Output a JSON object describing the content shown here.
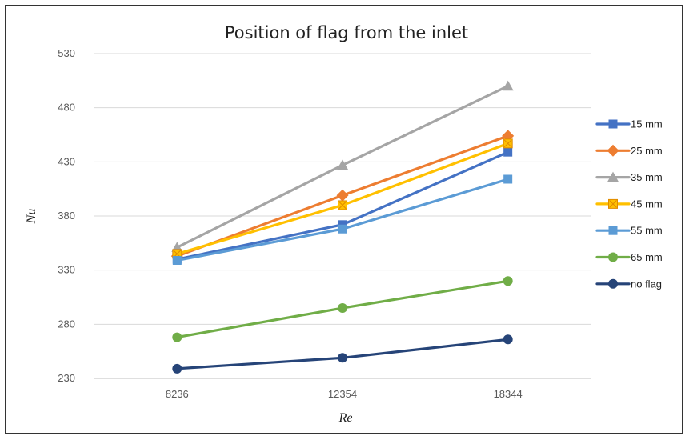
{
  "chart_data": {
    "type": "line",
    "title": "Position of flag from the inlet",
    "xlabel": "Re",
    "ylabel": "Nu",
    "categories": [
      "8236",
      "12354",
      "18344"
    ],
    "ylim": [
      230,
      530
    ],
    "yticks": [
      230,
      280,
      330,
      380,
      430,
      480,
      530
    ],
    "grid": "horizontal",
    "legend_position": "right",
    "series": [
      {
        "name": "15 mm",
        "values": [
          340,
          372,
          439
        ],
        "color": "#4472C4",
        "marker": "square"
      },
      {
        "name": "25 mm",
        "values": [
          343,
          399,
          454
        ],
        "color": "#ED7D31",
        "marker": "diamond"
      },
      {
        "name": "35 mm",
        "values": [
          351,
          427,
          500
        ],
        "color": "#A5A5A5",
        "marker": "triangle"
      },
      {
        "name": "45 mm",
        "values": [
          345,
          390,
          447
        ],
        "color": "#FFC000",
        "marker": "square-x"
      },
      {
        "name": "55 mm",
        "values": [
          339,
          368,
          414
        ],
        "color": "#5B9BD5",
        "marker": "square"
      },
      {
        "name": "65 mm",
        "values": [
          268,
          295,
          320
        ],
        "color": "#70AD47",
        "marker": "circle"
      },
      {
        "name": "no flag",
        "values": [
          239,
          249,
          266
        ],
        "color": "#264478",
        "marker": "circle"
      }
    ]
  }
}
